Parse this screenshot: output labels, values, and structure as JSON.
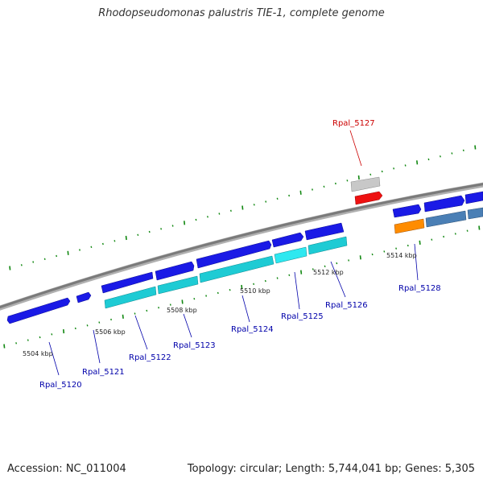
{
  "title": "Rhodopseudomonas palustris TIE-1, complete genome",
  "footer": {
    "accession": "Accession: NC_011004",
    "stats": "Topology: circular; Length: 5,744,041 bp; Genes: 5,305"
  },
  "kbp_labels": [
    "5504 kbp",
    "5506 kbp",
    "5508 kbp",
    "5510 kbp",
    "5512 kbp",
    "5514 kbp"
  ],
  "genes": [
    {
      "name": "Rpal_5120",
      "color": "#1a1ae6"
    },
    {
      "name": "Rpal_5121",
      "color": "#1a1ae6"
    },
    {
      "name": "Rpal_5122",
      "color": "#1a1ae6"
    },
    {
      "name": "Rpal_5123",
      "color": "#1a1ae6"
    },
    {
      "name": "Rpal_5124",
      "color": "#1a1ae6"
    },
    {
      "name": "Rpal_5125",
      "color": "#1a1ae6"
    },
    {
      "name": "Rpal_5126",
      "color": "#1a1ae6"
    },
    {
      "name": "Rpal_5127",
      "color": "#ee1111"
    },
    {
      "name": "Rpal_5128",
      "color": "#1a1ae6"
    }
  ],
  "colors": {
    "cds": "#1a1ae6",
    "gene": "#1ecbd4",
    "rna": "#ee1111",
    "pseudo": "#ff8c00",
    "other": "#4a7fb5",
    "backbone": "#808080",
    "tick": "#118811"
  }
}
